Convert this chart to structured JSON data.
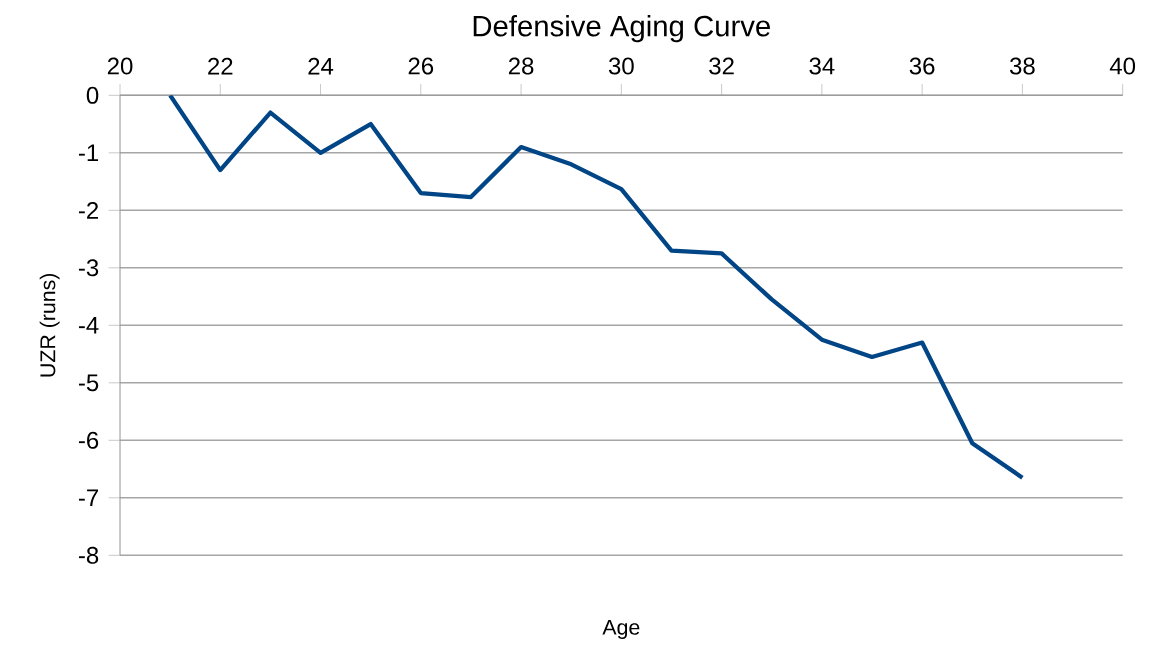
{
  "chart_data": {
    "type": "line",
    "title": "Defensive Aging Curve",
    "xlabel": "Age",
    "ylabel": "UZR (runs)",
    "x": [
      21,
      22,
      23,
      24,
      25,
      26,
      27,
      28,
      29,
      30,
      31,
      32,
      33,
      34,
      35,
      36,
      37,
      38
    ],
    "series": [
      {
        "color": "#004586",
        "values": [
          0,
          -1.3,
          -0.3,
          -1.0,
          -0.5,
          -1.7,
          -1.77,
          -0.9,
          -1.2,
          -1.63,
          -2.7,
          -2.75,
          -3.55,
          -4.25,
          -4.55,
          -4.3,
          -6.05,
          -6.65
        ]
      }
    ],
    "xlim": [
      20,
      40
    ],
    "xticks": [
      20,
      22,
      24,
      26,
      28,
      30,
      32,
      34,
      36,
      38,
      40
    ],
    "ylim": [
      -8,
      0
    ],
    "yticks": [
      -8,
      -7,
      -6,
      -5,
      -4,
      -3,
      -2,
      -1,
      0
    ],
    "grid": "y",
    "marker": "none",
    "line_style": "solid"
  }
}
